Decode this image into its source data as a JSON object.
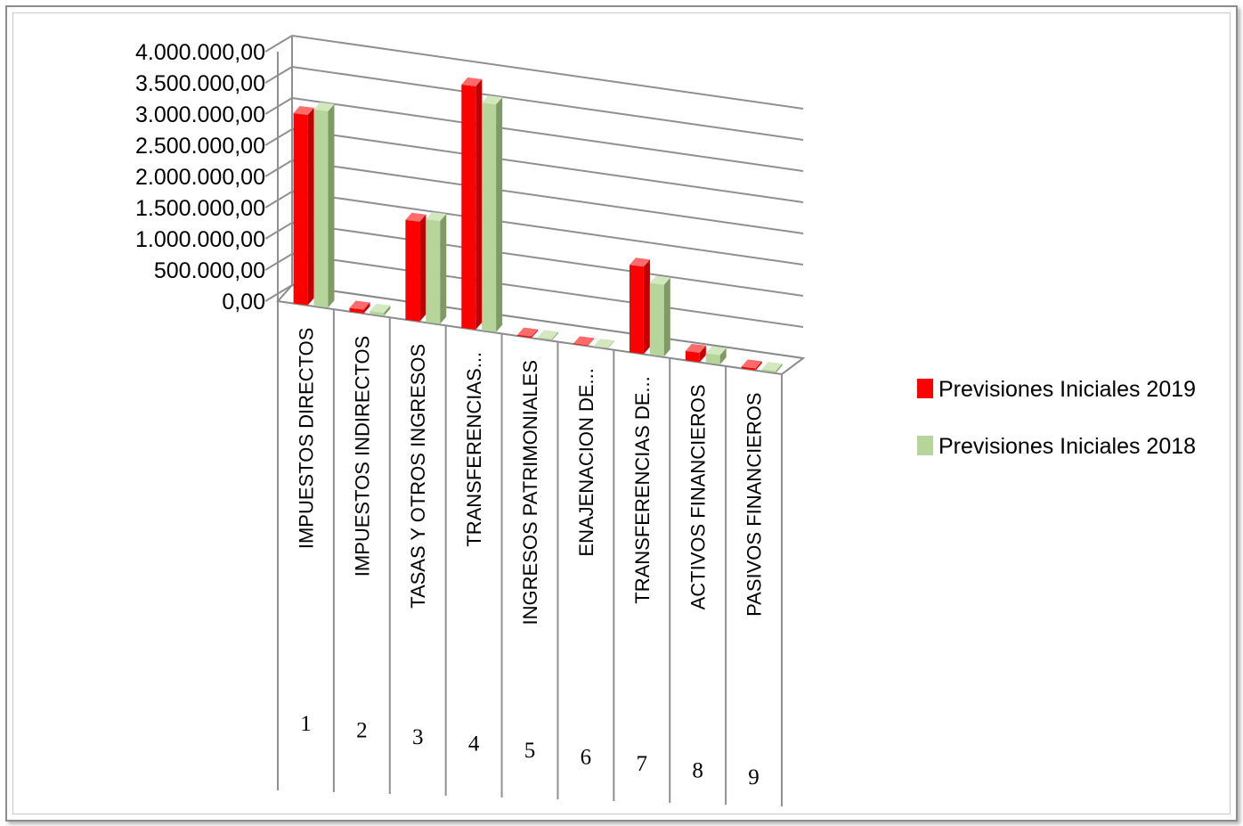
{
  "chart_data": {
    "type": "bar",
    "three_d": true,
    "categories": [
      "IMPUESTOS DIRECTOS",
      "IMPUESTOS INDIRECTOS",
      "TASAS Y OTROS INGRESOS",
      "TRANSFERENCIAS...",
      "INGRESOS PATRIMONIALES",
      "ENAJENACION DE...",
      "TRANSFERENCIAS DE...",
      "ACTIVOS FINANCIEROS",
      "PASIVOS FINANCIEROS"
    ],
    "category_numbers": [
      "1",
      "2",
      "3",
      "4",
      "5",
      "6",
      "7",
      "8",
      "9"
    ],
    "series": [
      {
        "name": "Previsiones Iniciales 2019",
        "color": "#ff0000",
        "values": [
          3050000,
          60000,
          1600000,
          3900000,
          20000,
          10000,
          1400000,
          150000,
          30000
        ]
      },
      {
        "name": "Previsiones Iniciales 2018",
        "color": "#b5d59a",
        "values": [
          3150000,
          50000,
          1650000,
          3650000,
          20000,
          10000,
          1150000,
          150000,
          30000
        ]
      }
    ],
    "y_ticks": [
      "0,00",
      "500.000,00",
      "1.000.000,00",
      "1.500.000,00",
      "2.000.000,00",
      "2.500.000,00",
      "3.000.000,00",
      "3.500.000,00",
      "4.000.000,00"
    ],
    "ylim": [
      0,
      4000000
    ],
    "grid": true,
    "legend_position": "right"
  }
}
